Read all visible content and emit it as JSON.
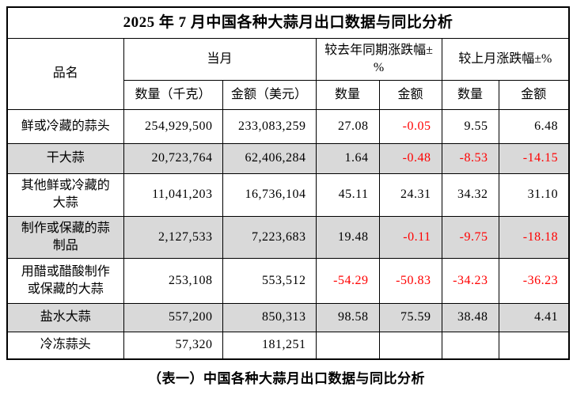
{
  "table": {
    "title": "2025 年 7 月中国各种大蒜月出口数据与同比分析",
    "headers": {
      "product": "品名",
      "current_month_group": "当月",
      "yoy_group": "较去年同期涨跌幅±%",
      "mom_group": "较上月涨跌幅±%",
      "qty_kg": "数量（千克）",
      "amount_usd": "金额（美元）",
      "qty": "数量",
      "amount": "金额"
    },
    "rows": [
      {
        "name": "鲜或冷藏的蒜头",
        "qty": "254,929,500",
        "amount": "233,083,259",
        "yoy_qty": "27.08",
        "yoy_amt": "-0.05",
        "mom_qty": "9.55",
        "mom_amt": "6.48",
        "shaded": false
      },
      {
        "name": "干大蒜",
        "qty": "20,723,764",
        "amount": "62,406,284",
        "yoy_qty": "1.64",
        "yoy_amt": "-0.48",
        "mom_qty": "-8.53",
        "mom_amt": "-14.15",
        "shaded": true
      },
      {
        "name": "其他鲜或冷藏的大蒜",
        "qty": "11,041,203",
        "amount": "16,736,104",
        "yoy_qty": "45.11",
        "yoy_amt": "24.31",
        "mom_qty": "34.32",
        "mom_amt": "31.10",
        "shaded": false
      },
      {
        "name": "制作或保藏的蒜制品",
        "qty": "2,127,533",
        "amount": "7,223,683",
        "yoy_qty": "19.48",
        "yoy_amt": "-0.11",
        "mom_qty": "-9.75",
        "mom_amt": "-18.18",
        "shaded": true
      },
      {
        "name": "用醋或醋酸制作或保藏的大蒜",
        "qty": "253,108",
        "amount": "553,512",
        "yoy_qty": "-54.29",
        "yoy_amt": "-50.83",
        "mom_qty": "-34.23",
        "mom_amt": "-36.23",
        "shaded": false
      },
      {
        "name": "盐水大蒜",
        "qty": "557,200",
        "amount": "850,313",
        "yoy_qty": "98.58",
        "yoy_amt": "75.59",
        "mom_qty": "38.48",
        "mom_amt": "4.41",
        "shaded": true
      },
      {
        "name": "冷冻蒜头",
        "qty": "57,320",
        "amount": "181,251",
        "yoy_qty": "",
        "yoy_amt": "",
        "mom_qty": "",
        "mom_amt": "",
        "shaded": false
      }
    ]
  },
  "caption": "（表一）中国各种大蒜月出口数据与同比分析",
  "colors": {
    "negative_value": "#ff0000",
    "shaded_row": "#d9d9d9",
    "border": "#000000"
  }
}
